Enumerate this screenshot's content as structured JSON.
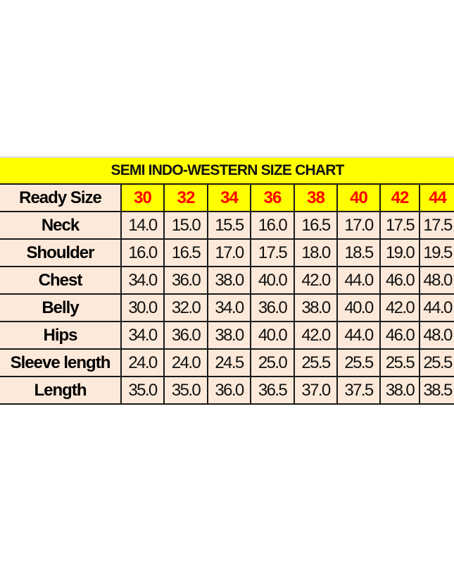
{
  "title": "SEMI INDO-WESTERN SIZE CHART",
  "header_label": "Ready Size",
  "sizes": [
    "30",
    "32",
    "34",
    "36",
    "38",
    "40",
    "42",
    "44"
  ],
  "colors": {
    "title_bg": "#ffff00",
    "size_text": "#ff0000",
    "cell_bg": "#fde9d9"
  },
  "rows": [
    {
      "label": "Neck",
      "values": [
        "14.0",
        "15.0",
        "15.5",
        "16.0",
        "16.5",
        "17.0",
        "17.5",
        "17.5"
      ]
    },
    {
      "label": "Shoulder",
      "values": [
        "16.0",
        "16.5",
        "17.0",
        "17.5",
        "18.0",
        "18.5",
        "19.0",
        "19.5"
      ]
    },
    {
      "label": "Chest",
      "values": [
        "34.0",
        "36.0",
        "38.0",
        "40.0",
        "42.0",
        "44.0",
        "46.0",
        "48.0"
      ]
    },
    {
      "label": "Belly",
      "values": [
        "30.0",
        "32.0",
        "34.0",
        "36.0",
        "38.0",
        "40.0",
        "42.0",
        "44.0"
      ]
    },
    {
      "label": "Hips",
      "values": [
        "34.0",
        "36.0",
        "38.0",
        "40.0",
        "42.0",
        "44.0",
        "46.0",
        "48.0"
      ]
    },
    {
      "label": "Sleeve length",
      "values": [
        "24.0",
        "24.0",
        "24.5",
        "25.0",
        "25.5",
        "25.5",
        "25.5",
        "25.5"
      ]
    },
    {
      "label": "Length",
      "values": [
        "35.0",
        "35.0",
        "36.0",
        "36.5",
        "37.0",
        "37.5",
        "38.0",
        "38.5"
      ]
    }
  ]
}
